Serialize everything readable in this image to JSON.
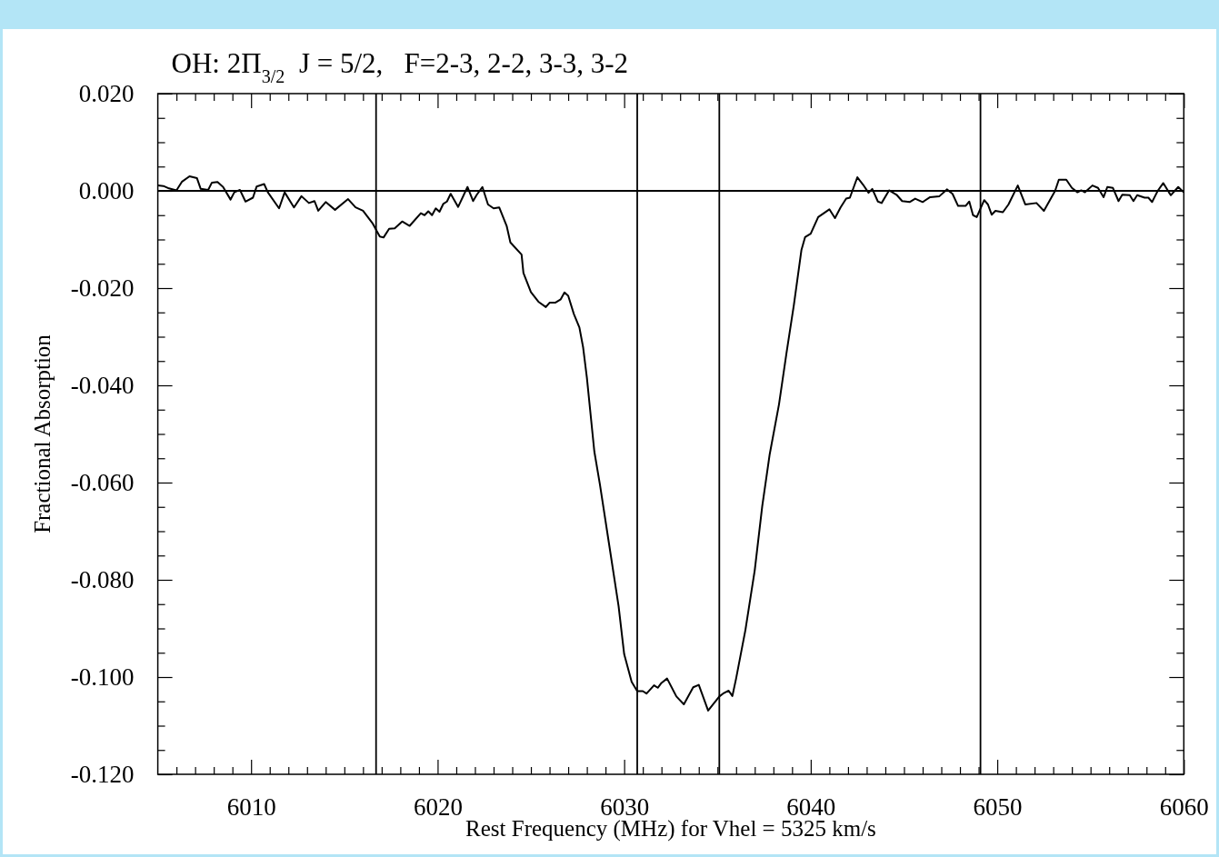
{
  "chart_data": {
    "type": "line",
    "title": "OH: 2Π$_{3/2}$  J = 5/2,   F=2-3, 2-2, 3-3, 3-2",
    "xlabel": "Rest Frequency (MHz) for Vhel = 5325 km/s",
    "ylabel": "Fractional Absorption",
    "xlim": [
      6005,
      6060
    ],
    "ylim": [
      -0.12,
      0.02
    ],
    "xticks": [
      {
        "value": 6006,
        "label": null
      },
      {
        "value": 6007,
        "label": null
      },
      {
        "value": 6008,
        "label": null
      },
      {
        "value": 6009,
        "label": null
      },
      6010,
      {
        "value": 6011,
        "label": null
      },
      {
        "value": 6012,
        "label": null
      },
      {
        "value": 6013,
        "label": null
      },
      {
        "value": 6014,
        "label": null
      },
      {
        "value": 6015,
        "label": null
      },
      {
        "value": 6016,
        "label": null
      },
      {
        "value": 6017,
        "label": null
      },
      {
        "value": 6018,
        "label": null
      },
      {
        "value": 6019,
        "label": null
      },
      6020,
      {
        "value": 6021,
        "label": null
      },
      {
        "value": 6022,
        "label": null
      },
      {
        "value": 6023,
        "label": null
      },
      {
        "value": 6024,
        "label": null
      },
      {
        "value": 6025,
        "label": null
      },
      {
        "value": 6026,
        "label": null
      },
      {
        "value": 6027,
        "label": null
      },
      {
        "value": 6028,
        "label": null
      },
      {
        "value": 6029,
        "label": null
      },
      6030,
      {
        "value": 6031,
        "label": null
      },
      {
        "value": 6032,
        "label": null
      },
      {
        "value": 6033,
        "label": null
      },
      {
        "value": 6034,
        "label": null
      },
      {
        "value": 6035,
        "label": null
      },
      {
        "value": 6036,
        "label": null
      },
      {
        "value": 6037,
        "label": null
      },
      {
        "value": 6038,
        "label": null
      },
      {
        "value": 6039,
        "label": null
      },
      6040,
      {
        "value": 6041,
        "label": null
      },
      {
        "value": 6042,
        "label": null
      },
      {
        "value": 6043,
        "label": null
      },
      {
        "value": 6044,
        "label": null
      },
      {
        "value": 6045,
        "label": null
      },
      {
        "value": 6046,
        "label": null
      },
      {
        "value": 6047,
        "label": null
      },
      {
        "value": 6048,
        "label": null
      },
      {
        "value": 6049,
        "label": null
      },
      6050,
      {
        "value": 6051,
        "label": null
      },
      {
        "value": 6052,
        "label": null
      },
      {
        "value": 6053,
        "label": null
      },
      {
        "value": 6054,
        "label": null
      },
      {
        "value": 6055,
        "label": null
      },
      {
        "value": 6056,
        "label": null
      },
      {
        "value": 6057,
        "label": null
      },
      {
        "value": 6058,
        "label": null
      },
      {
        "value": 6059,
        "label": null
      },
      6060
    ],
    "yticks": [
      {
        "value": -0.12,
        "label": "-0.120"
      },
      {
        "value": -0.115,
        "label": null
      },
      {
        "value": -0.11,
        "label": null
      },
      {
        "value": -0.105,
        "label": null
      },
      {
        "value": -0.1,
        "label": "-0.100"
      },
      {
        "value": -0.095,
        "label": null
      },
      {
        "value": -0.09,
        "label": null
      },
      {
        "value": -0.085,
        "label": null
      },
      {
        "value": -0.08,
        "label": "-0.080"
      },
      {
        "value": -0.075,
        "label": null
      },
      {
        "value": -0.07,
        "label": null
      },
      {
        "value": -0.065,
        "label": null
      },
      {
        "value": -0.06,
        "label": "-0.060"
      },
      {
        "value": -0.055,
        "label": null
      },
      {
        "value": -0.05,
        "label": null
      },
      {
        "value": -0.045,
        "label": null
      },
      {
        "value": -0.04,
        "label": "-0.040"
      },
      {
        "value": -0.035,
        "label": null
      },
      {
        "value": -0.03,
        "label": null
      },
      {
        "value": -0.025,
        "label": null
      },
      {
        "value": -0.02,
        "label": "-0.020"
      },
      {
        "value": -0.015,
        "label": null
      },
      {
        "value": -0.01,
        "label": null
      },
      {
        "value": -0.005,
        "label": null
      },
      {
        "value": 0,
        "label": "0.000"
      },
      {
        "value": 0.005,
        "label": null
      },
      {
        "value": 0.01,
        "label": null
      },
      {
        "value": 0.015,
        "label": null
      },
      {
        "value": 0.02,
        "label": "0.020"
      }
    ],
    "grid": false,
    "marker": "none",
    "line_style": "solid",
    "ref_lines": [
      {
        "axis": "y",
        "value": 0,
        "color": "#000000"
      },
      {
        "axis": "x",
        "value": 6016.7,
        "color": "#000000"
      },
      {
        "axis": "x",
        "value": 6030.7,
        "color": "#000000"
      },
      {
        "axis": "x",
        "value": 6035.1,
        "color": "#000000"
      },
      {
        "axis": "x",
        "value": 6049.1,
        "color": "#000000"
      }
    ],
    "series": [
      {
        "color": "#000000",
        "x": [
          6005.0,
          6005.3,
          6005.6,
          6006.0,
          6006.3,
          6006.7,
          6007.1,
          6007.3,
          6007.7,
          6007.9,
          6008.2,
          6008.5,
          6008.9,
          6009.1,
          6009.4,
          6009.7,
          6010.1,
          6010.3,
          6010.7,
          6010.9,
          6011.5,
          6011.8,
          6012.3,
          6012.7,
          6013.1,
          6013.4,
          6013.6,
          6014.0,
          6014.5,
          6015.2,
          6015.6,
          6016.0,
          6016.5,
          6016.9,
          6017.1,
          6017.4,
          6017.7,
          6018.1,
          6018.5,
          6019.1,
          6019.3,
          6019.5,
          6019.7,
          6019.9,
          6020.1,
          6020.3,
          6020.5,
          6020.7,
          6021.1,
          6021.6,
          6021.9,
          6022.1,
          6022.4,
          6022.7,
          6023.0,
          6023.3,
          6023.7,
          6023.9,
          6024.5,
          6024.6,
          6025.0,
          6025.4,
          6025.8,
          6026.0,
          6026.3,
          6026.6,
          6026.8,
          6027.0,
          6027.3,
          6027.6,
          6027.8,
          6028.0,
          6028.4,
          6028.7,
          6029.2,
          6029.7,
          6030.0,
          6030.4,
          6030.7,
          6031.0,
          6031.2,
          6031.6,
          6031.8,
          6032.0,
          6032.3,
          6032.8,
          6033.2,
          6033.7,
          6034.0,
          6034.5,
          6035.1,
          6035.3,
          6035.6,
          6035.8,
          6036.0,
          6036.5,
          6037.0,
          6037.4,
          6037.8,
          6038.3,
          6038.7,
          6039.1,
          6039.5,
          6039.7,
          6040.0,
          6040.4,
          6041.0,
          6041.3,
          6041.6,
          6041.9,
          6042.1,
          6042.5,
          6042.8,
          6043.1,
          6043.3,
          6043.6,
          6043.8,
          6044.2,
          6044.6,
          6044.9,
          6045.3,
          6045.6,
          6046.0,
          6046.4,
          6046.9,
          6047.3,
          6047.6,
          6047.9,
          6048.3,
          6048.5,
          6048.7,
          6048.9,
          6049.3,
          6049.5,
          6049.7,
          6049.9,
          6050.3,
          6050.6,
          6051.1,
          6051.5,
          6052.1,
          6052.5,
          6053.1,
          6053.3,
          6053.7,
          6054.0,
          6054.3,
          6054.5,
          6054.7,
          6055.1,
          6055.4,
          6055.7,
          6055.9,
          6056.2,
          6056.5,
          6056.7,
          6057.1,
          6057.3,
          6057.5,
          6057.9,
          6058.1,
          6058.3,
          6058.6,
          6058.9,
          6059.2,
          6059.3,
          6059.7,
          6060.0
        ],
        "values": [
          0.0011,
          0.001,
          0.0005,
          0.0001,
          0.0019,
          0.003,
          0.0026,
          0.0004,
          0.0002,
          0.0017,
          0.0018,
          0.0008,
          -0.0018,
          -0.0003,
          0.0002,
          -0.0022,
          -0.0014,
          0.0009,
          0.0014,
          -0.0003,
          -0.0036,
          -0.0003,
          -0.0034,
          -0.0011,
          -0.0025,
          -0.0021,
          -0.0041,
          -0.0023,
          -0.0039,
          -0.0017,
          -0.0034,
          -0.0041,
          -0.0066,
          -0.0094,
          -0.0096,
          -0.0078,
          -0.0077,
          -0.0063,
          -0.0072,
          -0.0046,
          -0.005,
          -0.0042,
          -0.005,
          -0.0036,
          -0.0043,
          -0.0027,
          -0.0022,
          -0.0006,
          -0.0033,
          0.0008,
          -0.0021,
          -0.0008,
          0.0008,
          -0.0028,
          -0.0036,
          -0.0034,
          -0.0072,
          -0.0106,
          -0.0131,
          -0.0169,
          -0.0208,
          -0.0228,
          -0.0239,
          -0.023,
          -0.023,
          -0.0223,
          -0.0209,
          -0.0216,
          -0.0253,
          -0.0281,
          -0.0322,
          -0.0384,
          -0.0536,
          -0.0604,
          -0.0729,
          -0.0854,
          -0.0953,
          -0.101,
          -0.1029,
          -0.1029,
          -0.1034,
          -0.1017,
          -0.1022,
          -0.1012,
          -0.1003,
          -0.104,
          -0.1056,
          -0.1021,
          -0.1016,
          -0.1069,
          -0.104,
          -0.1034,
          -0.1028,
          -0.1039,
          -0.1003,
          -0.0903,
          -0.078,
          -0.0649,
          -0.0542,
          -0.0439,
          -0.0334,
          -0.0234,
          -0.0122,
          -0.0095,
          -0.0088,
          -0.0054,
          -0.0038,
          -0.0056,
          -0.0034,
          -0.0016,
          -0.0014,
          0.0028,
          0.0013,
          -0.0004,
          0.0004,
          -0.0022,
          -0.0025,
          0.0001,
          -0.0008,
          -0.0021,
          -0.0023,
          -0.0016,
          -0.0023,
          -0.0013,
          -0.0011,
          0.0003,
          -0.0006,
          -0.0031,
          -0.0031,
          -0.0022,
          -0.005,
          -0.0054,
          -0.0019,
          -0.0028,
          -0.0049,
          -0.0041,
          -0.0044,
          -0.0028,
          0.0011,
          -0.0028,
          -0.0025,
          -0.0041,
          0,
          0.0023,
          0.0023,
          0.0006,
          -0.0003,
          0.0001,
          -0.0003,
          0.0011,
          0.0006,
          -0.0013,
          0.0008,
          0.0006,
          -0.0021,
          -0.0008,
          -0.0009,
          -0.0021,
          -0.0009,
          -0.0014,
          -0.0014,
          -0.0023,
          0,
          0.0016,
          -0.0003,
          -0.0009,
          0.0008,
          -0.0003
        ]
      }
    ]
  }
}
